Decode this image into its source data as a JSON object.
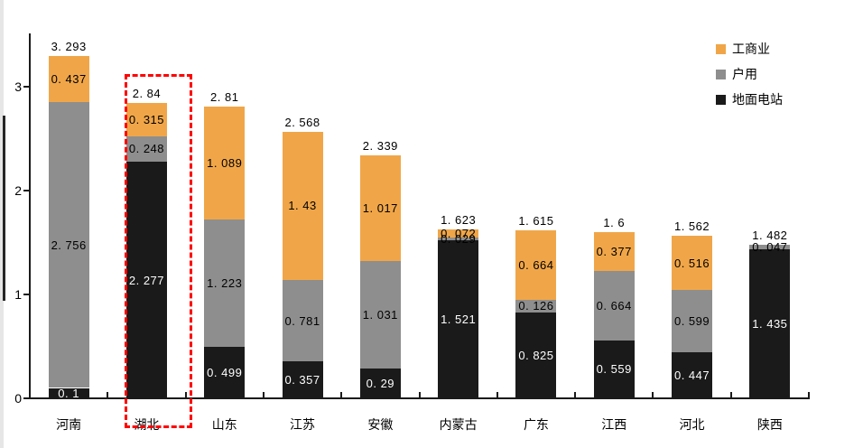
{
  "figure": {
    "background": "#ffffff",
    "highlight": {
      "target_category": "湖北",
      "shape": "dashed-rectangle",
      "color": "#ff0000"
    }
  },
  "legend": {
    "position": "top-right",
    "items": [
      {
        "label": "工商业",
        "color": "#f0a648"
      },
      {
        "label": "户用",
        "color": "#8e8e8e"
      },
      {
        "label": "地面电站",
        "color": "#1a1a1a"
      }
    ]
  },
  "chart_data": {
    "type": "bar",
    "stacked": true,
    "title": "",
    "xlabel": "",
    "ylabel": "",
    "grid": false,
    "ylim": [
      0,
      3.5
    ],
    "yticks": [
      0,
      1,
      2,
      3
    ],
    "legend_position": "top-right",
    "value_label_style": "decimal point rendered with trailing space, e.g. 3. 293",
    "categories": [
      "河南",
      "湖北",
      "山东",
      "江苏",
      "安徽",
      "内蒙古",
      "广东",
      "江西",
      "河北",
      "陕西"
    ],
    "series": [
      {
        "name": "地面电站",
        "color": "#1a1a1a",
        "label_color": "#ffffff",
        "values": [
          0.1,
          2.277,
          0.499,
          0.357,
          0.29,
          1.521,
          0.825,
          0.559,
          0.447,
          1.435
        ]
      },
      {
        "name": "户用",
        "color": "#8e8e8e",
        "label_color": "#000000",
        "values": [
          2.756,
          0.248,
          1.223,
          0.781,
          1.031,
          0.029,
          0.126,
          0.664,
          0.599,
          0.047
        ]
      },
      {
        "name": "工商业",
        "color": "#f0a648",
        "label_color": "#000000",
        "values": [
          0.437,
          0.315,
          1.089,
          1.43,
          1.017,
          0.072,
          0.664,
          0.377,
          0.516,
          0
        ]
      }
    ],
    "totals": [
      3.293,
      2.84,
      2.81,
      2.568,
      2.339,
      1.623,
      1.615,
      1.6,
      1.562,
      1.482
    ]
  }
}
